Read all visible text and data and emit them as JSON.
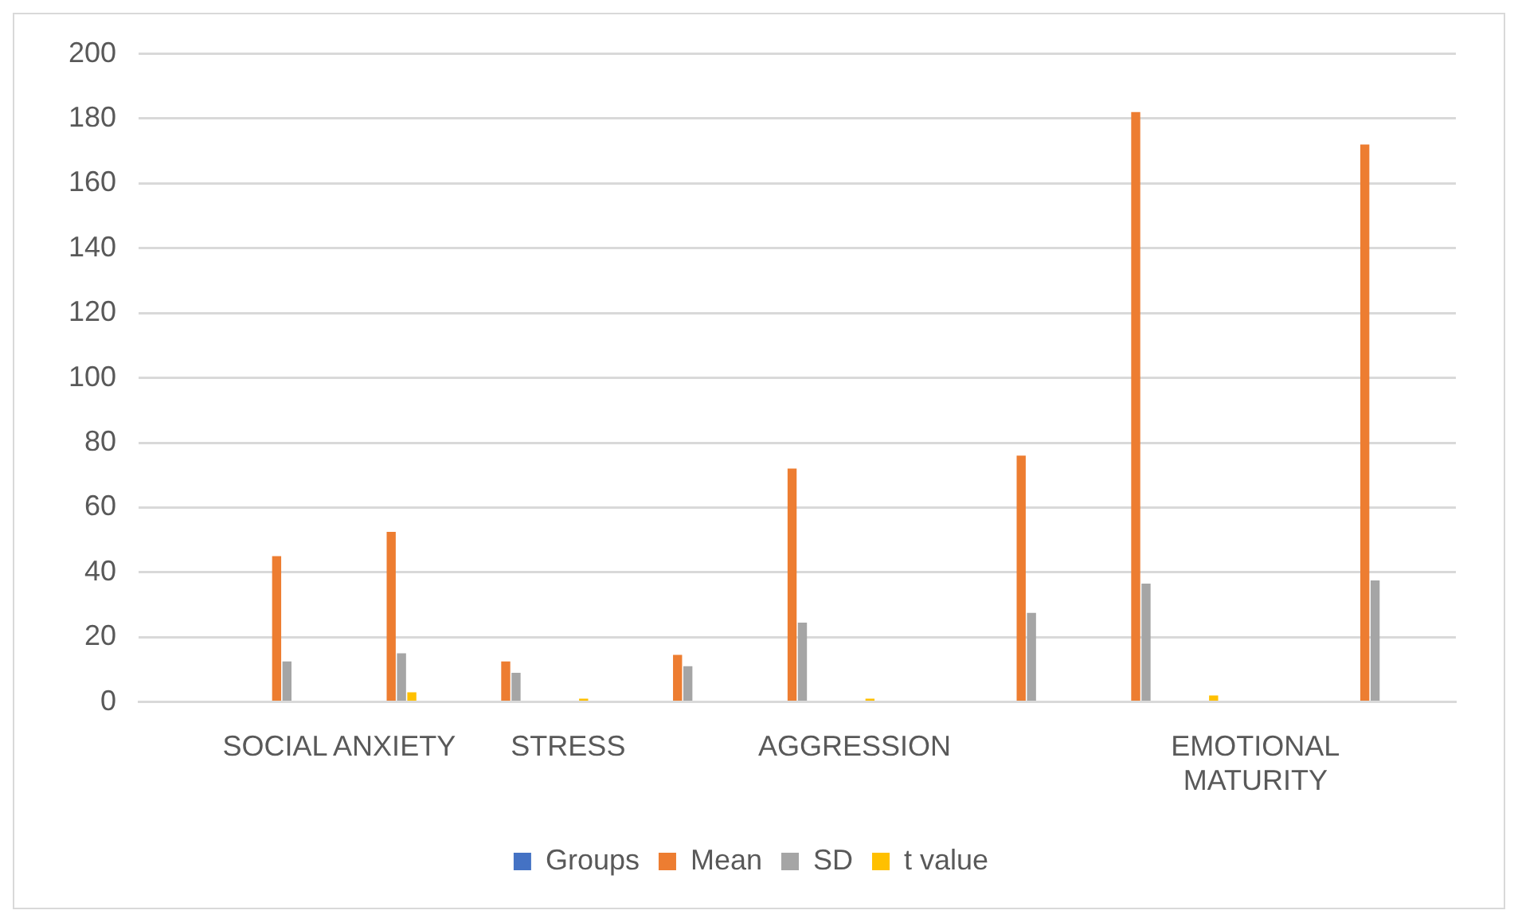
{
  "chart_data": {
    "type": "bar",
    "categories": [
      null,
      null,
      null,
      "SOCIAL ANXIETY",
      null,
      null,
      null,
      "STRESS",
      null,
      null,
      null,
      null,
      "AGGRESSION",
      null,
      null,
      null,
      null,
      null,
      null,
      "EMOTIONAL MATURITY",
      null,
      null,
      null
    ],
    "series": [
      {
        "name": "Groups",
        "color": "#4472c4",
        "values": [
          null,
          null,
          null,
          null,
          null,
          null,
          null,
          null,
          null,
          null,
          null,
          null,
          null,
          null,
          null,
          null,
          null,
          null,
          null,
          null,
          null,
          null,
          null
        ]
      },
      {
        "name": "Mean",
        "color": "#ed7d31",
        "values": [
          null,
          null,
          45,
          null,
          52.5,
          null,
          12.5,
          null,
          null,
          14.5,
          null,
          72,
          null,
          null,
          null,
          76,
          null,
          182,
          null,
          null,
          null,
          172,
          null
        ]
      },
      {
        "name": "SD",
        "color": "#a5a5a5",
        "values": [
          null,
          null,
          12.5,
          null,
          15,
          null,
          9,
          null,
          null,
          11,
          null,
          24.5,
          null,
          null,
          null,
          27.5,
          null,
          36.5,
          null,
          null,
          null,
          37.5,
          null
        ]
      },
      {
        "name": "t value",
        "color": "#ffc000",
        "values": [
          null,
          null,
          null,
          null,
          3,
          null,
          null,
          1,
          null,
          null,
          null,
          null,
          1,
          null,
          null,
          null,
          null,
          null,
          2,
          null,
          null,
          null,
          null
        ]
      }
    ],
    "ylim": [
      0,
      200
    ],
    "yticks": [
      0,
      20,
      40,
      60,
      80,
      100,
      120,
      140,
      160,
      180,
      200
    ],
    "grid": "y",
    "legend": "bottom"
  }
}
